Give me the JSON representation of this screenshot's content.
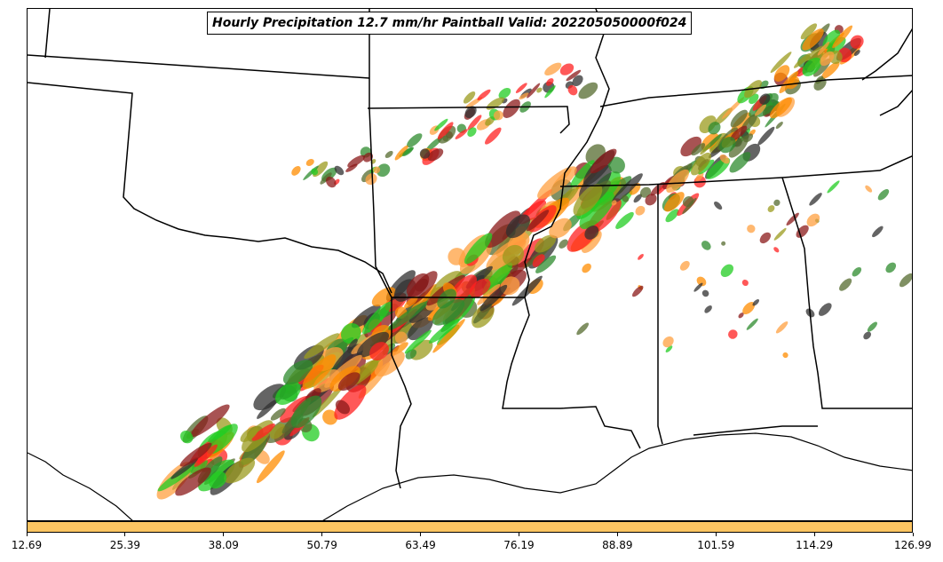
{
  "title": "Hourly Precipitation 12.7 mm/hr Paintball Valid: 202205050000f024",
  "colorbar": {
    "color": "#fcc562",
    "ticks": [
      "12.69",
      "25.39",
      "38.09",
      "50.79",
      "63.49",
      "76.19",
      "88.89",
      "101.59",
      "114.29",
      "126.99"
    ]
  },
  "paintball_colors": [
    "#2e8b2e",
    "#22cc22",
    "#ff2020",
    "#ff8c00",
    "#8b1a1a",
    "#9b9b1e",
    "#556b2f",
    "#303030",
    "#ffa040"
  ],
  "map": {
    "border_color": "#000000",
    "background": "#ffffff"
  }
}
